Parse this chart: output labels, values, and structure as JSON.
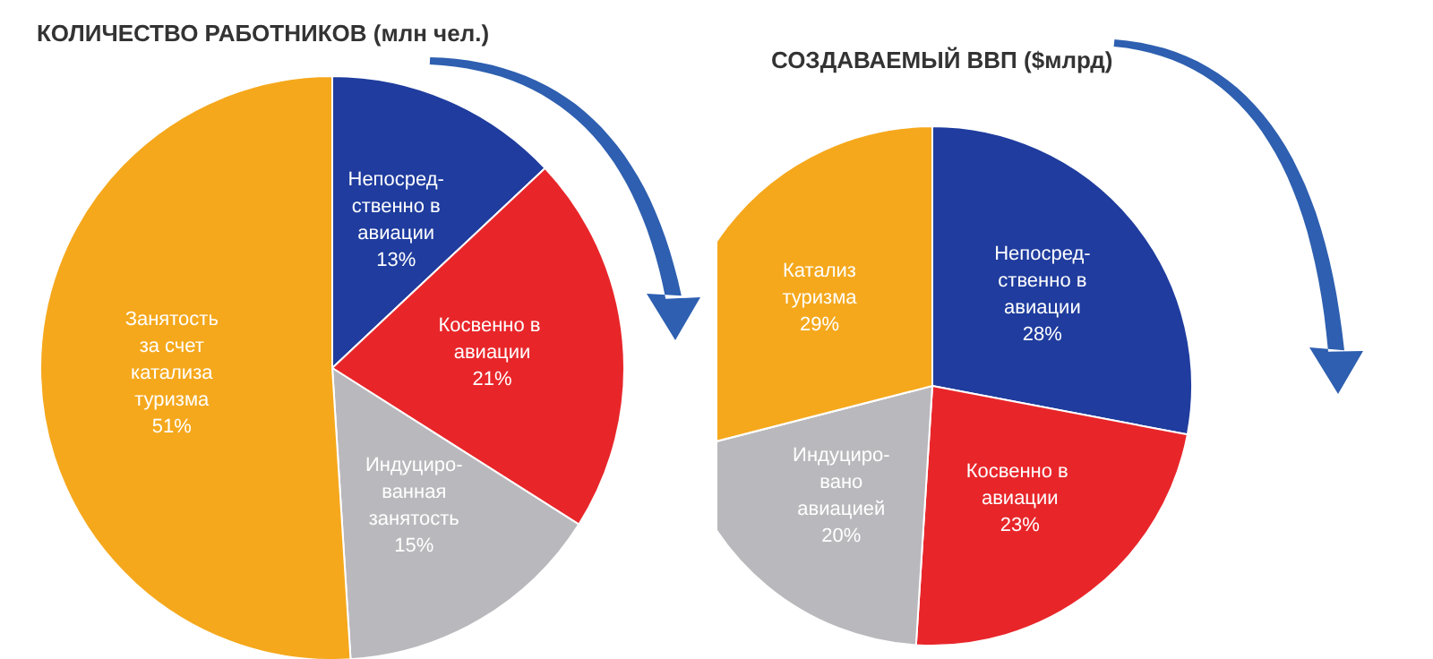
{
  "chart_data": [
    {
      "type": "pie",
      "title": "КОЛИЧЕСТВО РАБОТНИКОВ (млн чел.)",
      "categories": [
        "Непосред-\nственно в\nавиации",
        "Косвенно  в\nавиации",
        "Индуциро-\nванная\nзанятость",
        "Занятость\nза счет\nкатализа\nтуризма"
      ],
      "values": [
        13,
        21,
        15,
        51
      ],
      "value_labels": [
        "13%",
        "21%",
        "15%",
        "51%"
      ],
      "colors": [
        "#1f3c9e",
        "#e8262a",
        "#b9b9bd",
        "#f5a81c"
      ]
    },
    {
      "type": "pie",
      "title": "СОЗДАВАЕМЫЙ ВВП ($млрд)",
      "categories": [
        "Непосред-\nственно в\nавиации",
        "Косвенно  в\nавиации",
        "Индуциро-\nвано\nавиацией",
        "Катализ\nтуризма"
      ],
      "values": [
        28,
        23,
        20,
        29
      ],
      "value_labels": [
        "28%",
        "23%",
        "20%",
        "29%"
      ],
      "colors": [
        "#1f3c9e",
        "#e8262a",
        "#b9b9bd",
        "#f5a81c"
      ]
    }
  ]
}
